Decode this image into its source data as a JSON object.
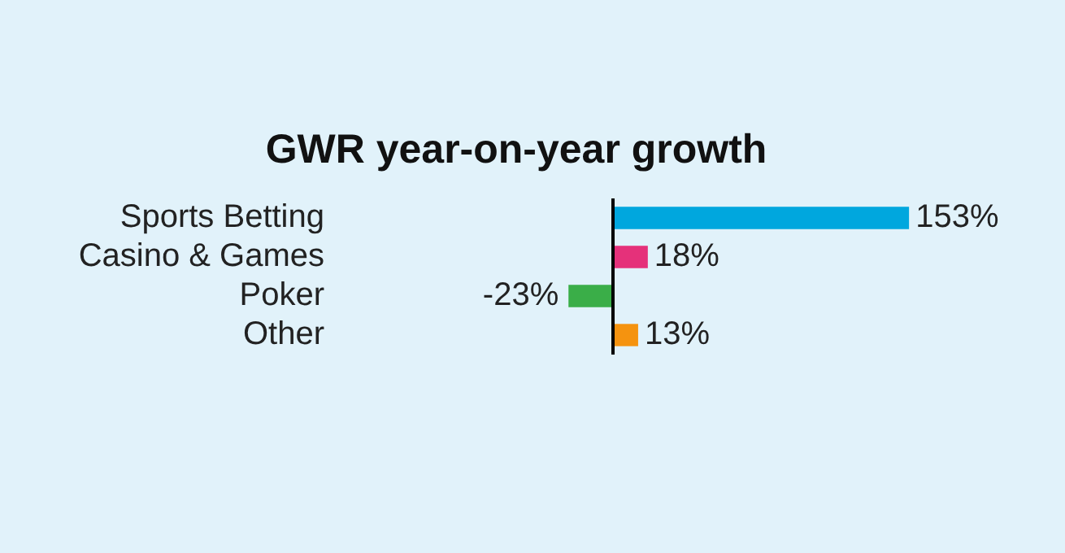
{
  "chart_data": {
    "type": "bar",
    "orientation": "horizontal",
    "title": "GWR year-on-year growth",
    "categories": [
      "Sports Betting",
      "Casino & Games",
      "Poker",
      "Other"
    ],
    "values": [
      153,
      18,
      -23,
      13
    ],
    "colors": [
      "#00a7de",
      "#e5317a",
      "#3aae48",
      "#f5930f"
    ],
    "value_labels": [
      "153%",
      "18%",
      "-23%",
      "13%"
    ],
    "legend": false
  }
}
